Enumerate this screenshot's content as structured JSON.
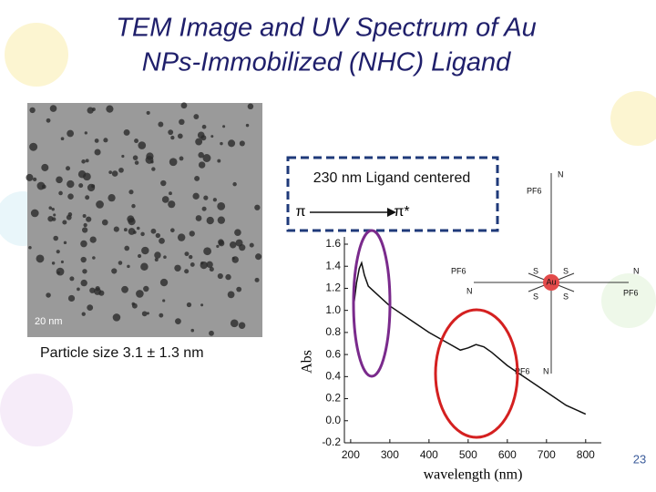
{
  "slide": {
    "title": [
      "TEM Image and UV Spectrum of Au",
      "NPs-Immobilized (NHC) Ligand"
    ],
    "scale_bar": "20 nm",
    "particle_size": "Particle size 3.1 ± 1.3 nm",
    "box_text": "230 nm Ligand centered",
    "transition_from": "π",
    "transition_to": "π*",
    "molecule_center": "Au",
    "molecule_sulfur": "S",
    "molecule_nitrogen": "N",
    "molecule_counterion": "PF6",
    "page_number": "23"
  },
  "chart_data": {
    "type": "line",
    "x_label": "wavelength (nm)",
    "y_label": "Abs",
    "x": [
      208,
      215,
      222,
      228,
      235,
      245,
      260,
      300,
      350,
      400,
      450,
      480,
      500,
      520,
      540,
      560,
      600,
      650,
      700,
      750,
      800
    ],
    "series": [
      {
        "color": "#111111",
        "values": [
          1.05,
          1.25,
          1.38,
          1.43,
          1.32,
          1.22,
          1.17,
          1.04,
          0.92,
          0.8,
          0.7,
          0.64,
          0.66,
          0.69,
          0.67,
          0.62,
          0.5,
          0.38,
          0.26,
          0.14,
          0.06
        ]
      }
    ],
    "xlim": [
      184,
      840
    ],
    "xticks": [
      200,
      300,
      400,
      500,
      600,
      700,
      800
    ],
    "ylim": [
      -0.2,
      1.6
    ],
    "yticks": [
      {
        "value": -0.2,
        "label": "-0.2"
      },
      {
        "value": 0,
        "label": "0.0"
      },
      0.2,
      0.4,
      0.6,
      0.8,
      {
        "value": 1,
        "label": "1.0"
      },
      1.2,
      1.4,
      1.6
    ]
  }
}
